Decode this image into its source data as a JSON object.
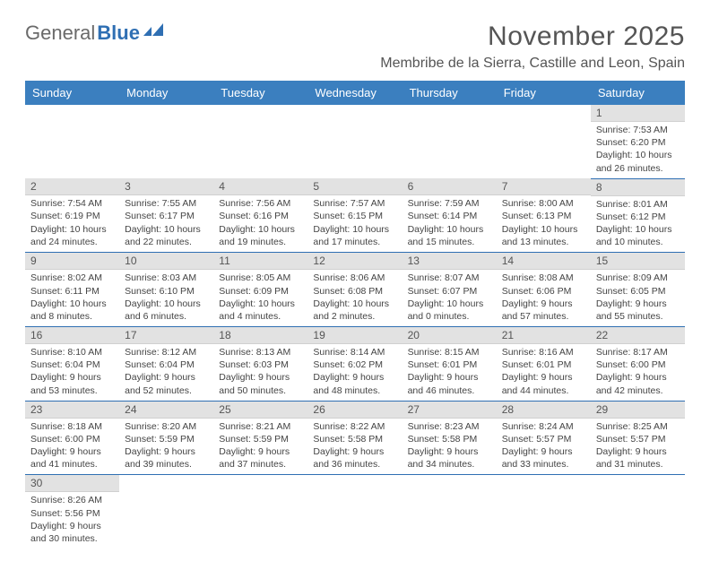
{
  "logo": {
    "text_a": "General",
    "text_b": "Blue"
  },
  "title": "November 2025",
  "location": "Membribe de la Sierra, Castille and Leon, Spain",
  "colors": {
    "header_bg": "#3b7fbf",
    "header_text": "#ffffff",
    "row_divider": "#2f6fb3",
    "daynum_bg": "#e2e2e2",
    "body_text": "#444444",
    "title_text": "#555555",
    "logo_gray": "#6a6a6a",
    "logo_blue": "#2f6fb3"
  },
  "weekdays": [
    "Sunday",
    "Monday",
    "Tuesday",
    "Wednesday",
    "Thursday",
    "Friday",
    "Saturday"
  ],
  "weeks": [
    [
      null,
      null,
      null,
      null,
      null,
      null,
      {
        "n": "1",
        "sr": "Sunrise: 7:53 AM",
        "ss": "Sunset: 6:20 PM",
        "dl": "Daylight: 10 hours and 26 minutes."
      }
    ],
    [
      {
        "n": "2",
        "sr": "Sunrise: 7:54 AM",
        "ss": "Sunset: 6:19 PM",
        "dl": "Daylight: 10 hours and 24 minutes."
      },
      {
        "n": "3",
        "sr": "Sunrise: 7:55 AM",
        "ss": "Sunset: 6:17 PM",
        "dl": "Daylight: 10 hours and 22 minutes."
      },
      {
        "n": "4",
        "sr": "Sunrise: 7:56 AM",
        "ss": "Sunset: 6:16 PM",
        "dl": "Daylight: 10 hours and 19 minutes."
      },
      {
        "n": "5",
        "sr": "Sunrise: 7:57 AM",
        "ss": "Sunset: 6:15 PM",
        "dl": "Daylight: 10 hours and 17 minutes."
      },
      {
        "n": "6",
        "sr": "Sunrise: 7:59 AM",
        "ss": "Sunset: 6:14 PM",
        "dl": "Daylight: 10 hours and 15 minutes."
      },
      {
        "n": "7",
        "sr": "Sunrise: 8:00 AM",
        "ss": "Sunset: 6:13 PM",
        "dl": "Daylight: 10 hours and 13 minutes."
      },
      {
        "n": "8",
        "sr": "Sunrise: 8:01 AM",
        "ss": "Sunset: 6:12 PM",
        "dl": "Daylight: 10 hours and 10 minutes."
      }
    ],
    [
      {
        "n": "9",
        "sr": "Sunrise: 8:02 AM",
        "ss": "Sunset: 6:11 PM",
        "dl": "Daylight: 10 hours and 8 minutes."
      },
      {
        "n": "10",
        "sr": "Sunrise: 8:03 AM",
        "ss": "Sunset: 6:10 PM",
        "dl": "Daylight: 10 hours and 6 minutes."
      },
      {
        "n": "11",
        "sr": "Sunrise: 8:05 AM",
        "ss": "Sunset: 6:09 PM",
        "dl": "Daylight: 10 hours and 4 minutes."
      },
      {
        "n": "12",
        "sr": "Sunrise: 8:06 AM",
        "ss": "Sunset: 6:08 PM",
        "dl": "Daylight: 10 hours and 2 minutes."
      },
      {
        "n": "13",
        "sr": "Sunrise: 8:07 AM",
        "ss": "Sunset: 6:07 PM",
        "dl": "Daylight: 10 hours and 0 minutes."
      },
      {
        "n": "14",
        "sr": "Sunrise: 8:08 AM",
        "ss": "Sunset: 6:06 PM",
        "dl": "Daylight: 9 hours and 57 minutes."
      },
      {
        "n": "15",
        "sr": "Sunrise: 8:09 AM",
        "ss": "Sunset: 6:05 PM",
        "dl": "Daylight: 9 hours and 55 minutes."
      }
    ],
    [
      {
        "n": "16",
        "sr": "Sunrise: 8:10 AM",
        "ss": "Sunset: 6:04 PM",
        "dl": "Daylight: 9 hours and 53 minutes."
      },
      {
        "n": "17",
        "sr": "Sunrise: 8:12 AM",
        "ss": "Sunset: 6:04 PM",
        "dl": "Daylight: 9 hours and 52 minutes."
      },
      {
        "n": "18",
        "sr": "Sunrise: 8:13 AM",
        "ss": "Sunset: 6:03 PM",
        "dl": "Daylight: 9 hours and 50 minutes."
      },
      {
        "n": "19",
        "sr": "Sunrise: 8:14 AM",
        "ss": "Sunset: 6:02 PM",
        "dl": "Daylight: 9 hours and 48 minutes."
      },
      {
        "n": "20",
        "sr": "Sunrise: 8:15 AM",
        "ss": "Sunset: 6:01 PM",
        "dl": "Daylight: 9 hours and 46 minutes."
      },
      {
        "n": "21",
        "sr": "Sunrise: 8:16 AM",
        "ss": "Sunset: 6:01 PM",
        "dl": "Daylight: 9 hours and 44 minutes."
      },
      {
        "n": "22",
        "sr": "Sunrise: 8:17 AM",
        "ss": "Sunset: 6:00 PM",
        "dl": "Daylight: 9 hours and 42 minutes."
      }
    ],
    [
      {
        "n": "23",
        "sr": "Sunrise: 8:18 AM",
        "ss": "Sunset: 6:00 PM",
        "dl": "Daylight: 9 hours and 41 minutes."
      },
      {
        "n": "24",
        "sr": "Sunrise: 8:20 AM",
        "ss": "Sunset: 5:59 PM",
        "dl": "Daylight: 9 hours and 39 minutes."
      },
      {
        "n": "25",
        "sr": "Sunrise: 8:21 AM",
        "ss": "Sunset: 5:59 PM",
        "dl": "Daylight: 9 hours and 37 minutes."
      },
      {
        "n": "26",
        "sr": "Sunrise: 8:22 AM",
        "ss": "Sunset: 5:58 PM",
        "dl": "Daylight: 9 hours and 36 minutes."
      },
      {
        "n": "27",
        "sr": "Sunrise: 8:23 AM",
        "ss": "Sunset: 5:58 PM",
        "dl": "Daylight: 9 hours and 34 minutes."
      },
      {
        "n": "28",
        "sr": "Sunrise: 8:24 AM",
        "ss": "Sunset: 5:57 PM",
        "dl": "Daylight: 9 hours and 33 minutes."
      },
      {
        "n": "29",
        "sr": "Sunrise: 8:25 AM",
        "ss": "Sunset: 5:57 PM",
        "dl": "Daylight: 9 hours and 31 minutes."
      }
    ],
    [
      {
        "n": "30",
        "sr": "Sunrise: 8:26 AM",
        "ss": "Sunset: 5:56 PM",
        "dl": "Daylight: 9 hours and 30 minutes."
      },
      null,
      null,
      null,
      null,
      null,
      null
    ]
  ]
}
